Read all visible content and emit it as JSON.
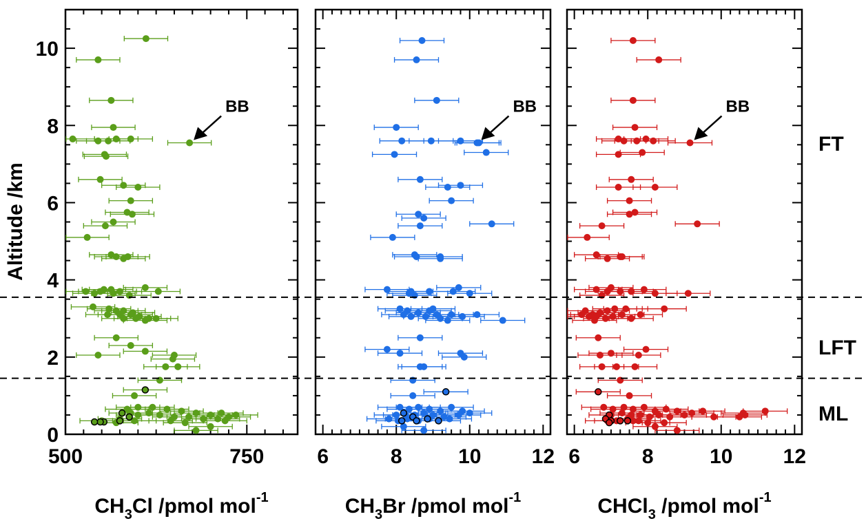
{
  "y_axis": {
    "label": "Altitude /km",
    "ticks": [
      "0",
      "2",
      "4",
      "6",
      "8",
      "10"
    ],
    "range": [
      0,
      11
    ]
  },
  "region_labels": [
    "FT",
    "LFT",
    "ML"
  ],
  "boundaries_km": [
    3.55,
    1.45
  ],
  "panels": [
    {
      "id": "ch3cl",
      "xlabel_main": "CH",
      "xlabel_sub": "3",
      "xlabel_rest": "Cl /pmol mol",
      "xlabel_sup": "-1",
      "xticks": [
        {
          "value": 500,
          "label": "500"
        },
        {
          "value": 750,
          "label": "750"
        }
      ],
      "annotation": "BB",
      "annotation_point": [
        671,
        7.55
      ]
    },
    {
      "id": "ch3br",
      "xlabel_main": "CH",
      "xlabel_sub": "3",
      "xlabel_rest": "Br /pmol mol",
      "xlabel_sup": "-1",
      "xticks": [
        {
          "value": 6,
          "label": "6"
        },
        {
          "value": 8,
          "label": "8"
        },
        {
          "value": 10,
          "label": "10"
        },
        {
          "value": 12,
          "label": "12"
        }
      ],
      "annotation": "BB",
      "annotation_point": [
        10.2,
        7.55
      ]
    },
    {
      "id": "chcl3",
      "xlabel_main": "CHCl",
      "xlabel_sub": "3",
      "xlabel_rest": " /pmol mol",
      "xlabel_sup": "-1",
      "xticks": [
        {
          "value": 6,
          "label": "6"
        },
        {
          "value": 8,
          "label": "8"
        },
        {
          "value": 10,
          "label": "10"
        },
        {
          "value": 12,
          "label": "12"
        }
      ],
      "annotation": "BB",
      "annotation_point": [
        9.15,
        7.55
      ]
    }
  ],
  "chart_data": [
    {
      "type": "scatter",
      "title": "",
      "xlabel": "CH3Cl /pmol mol-1",
      "ylabel": "Altitude /km",
      "xlim": [
        500,
        820
      ],
      "ylim": [
        0,
        11
      ],
      "color": "#5a9e1a",
      "x_error": 30,
      "points": [
        [
          611,
          10.25
        ],
        [
          545,
          9.7
        ],
        [
          563,
          8.65
        ],
        [
          566,
          7.95
        ],
        [
          510,
          7.65
        ],
        [
          545,
          7.6
        ],
        [
          559,
          7.6
        ],
        [
          570,
          7.65
        ],
        [
          590,
          7.65
        ],
        [
          671,
          7.55
        ],
        [
          554,
          7.25
        ],
        [
          556,
          7.2
        ],
        [
          548,
          6.6
        ],
        [
          580,
          6.45
        ],
        [
          600,
          6.4
        ],
        [
          590,
          6.05
        ],
        [
          585,
          5.75
        ],
        [
          592,
          5.7
        ],
        [
          566,
          5.5
        ],
        [
          555,
          5.4
        ],
        [
          530,
          5.1
        ],
        [
          563,
          4.65
        ],
        [
          570,
          4.6
        ],
        [
          580,
          4.55
        ],
        [
          586,
          4.6
        ],
        [
          528,
          3.7
        ],
        [
          548,
          3.7
        ],
        [
          553,
          3.75
        ],
        [
          563,
          3.75
        ],
        [
          610,
          3.8
        ],
        [
          628,
          3.7
        ],
        [
          540,
          3.65
        ],
        [
          566,
          3.65
        ],
        [
          575,
          3.7
        ],
        [
          588,
          3.6
        ],
        [
          538,
          3.3
        ],
        [
          560,
          3.25
        ],
        [
          570,
          3.2
        ],
        [
          580,
          3.2
        ],
        [
          593,
          3.15
        ],
        [
          558,
          3.1
        ],
        [
          575,
          3.1
        ],
        [
          590,
          3.1
        ],
        [
          602,
          3.05
        ],
        [
          615,
          3.0
        ],
        [
          580,
          3.0
        ],
        [
          597,
          3.0
        ],
        [
          610,
          2.95
        ],
        [
          625,
          3.0
        ],
        [
          570,
          2.5
        ],
        [
          590,
          2.3
        ],
        [
          545,
          2.05
        ],
        [
          610,
          2.15
        ],
        [
          650,
          2.05
        ],
        [
          648,
          1.95
        ],
        [
          638,
          1.75
        ],
        [
          655,
          1.75
        ],
        [
          630,
          1.4
        ],
        [
          610,
          1.15
        ],
        [
          595,
          1.0
        ],
        [
          600,
          0.7
        ],
        [
          585,
          0.65
        ],
        [
          620,
          0.7
        ],
        [
          640,
          0.65
        ],
        [
          660,
          0.6
        ],
        [
          680,
          0.55
        ],
        [
          700,
          0.5
        ],
        [
          715,
          0.55
        ],
        [
          725,
          0.45
        ],
        [
          735,
          0.5
        ],
        [
          590,
          0.55
        ],
        [
          600,
          0.5
        ],
        [
          615,
          0.55
        ],
        [
          630,
          0.5
        ],
        [
          650,
          0.45
        ],
        [
          670,
          0.45
        ],
        [
          690,
          0.4
        ],
        [
          710,
          0.4
        ],
        [
          720,
          0.35
        ],
        [
          575,
          0.4
        ],
        [
          595,
          0.35
        ],
        [
          645,
          0.35
        ],
        [
          665,
          0.3
        ],
        [
          700,
          0.2
        ],
        [
          680,
          0.1
        ],
        [
          570,
          0.3
        ],
        [
          550,
          0.35
        ]
      ],
      "outlined_points": [
        [
          610,
          1.15
        ],
        [
          578,
          0.55
        ],
        [
          588,
          0.45
        ],
        [
          575,
          0.35
        ],
        [
          553,
          0.32
        ],
        [
          548,
          0.32
        ],
        [
          540,
          0.32
        ]
      ]
    },
    {
      "type": "scatter",
      "title": "",
      "xlabel": "CH3Br /pmol mol-1",
      "ylabel": "Altitude /km",
      "xlim": [
        5.8,
        12.2
      ],
      "ylim": [
        0,
        11
      ],
      "color": "#1f6fe6",
      "x_error": 0.6,
      "points": [
        [
          8.7,
          10.2
        ],
        [
          8.55,
          9.7
        ],
        [
          9.1,
          8.65
        ],
        [
          8.0,
          7.95
        ],
        [
          8.15,
          7.6
        ],
        [
          8.95,
          7.6
        ],
        [
          9.75,
          7.6
        ],
        [
          10.2,
          7.55
        ],
        [
          10.25,
          7.55
        ],
        [
          10.45,
          7.3
        ],
        [
          7.95,
          7.25
        ],
        [
          8.65,
          6.6
        ],
        [
          9.4,
          6.4
        ],
        [
          9.75,
          6.45
        ],
        [
          9.5,
          6.05
        ],
        [
          8.6,
          5.7
        ],
        [
          8.75,
          5.6
        ],
        [
          10.6,
          5.45
        ],
        [
          8.65,
          5.4
        ],
        [
          7.9,
          5.1
        ],
        [
          8.5,
          4.65
        ],
        [
          8.55,
          4.6
        ],
        [
          9.2,
          4.6
        ],
        [
          9.2,
          4.55
        ],
        [
          7.75,
          3.75
        ],
        [
          8.4,
          3.7
        ],
        [
          8.35,
          3.65
        ],
        [
          8.9,
          3.7
        ],
        [
          9.55,
          3.7
        ],
        [
          9.7,
          3.8
        ],
        [
          10.0,
          3.65
        ],
        [
          8.5,
          3.6
        ],
        [
          8.1,
          3.25
        ],
        [
          8.3,
          3.2
        ],
        [
          8.6,
          3.15
        ],
        [
          8.9,
          3.2
        ],
        [
          9.1,
          3.1
        ],
        [
          8.4,
          3.05
        ],
        [
          8.8,
          3.05
        ],
        [
          9.2,
          3.0
        ],
        [
          9.5,
          3.1
        ],
        [
          9.8,
          3.05
        ],
        [
          10.2,
          3.1
        ],
        [
          10.9,
          2.95
        ],
        [
          9.4,
          2.95
        ],
        [
          8.2,
          3.1
        ],
        [
          9.0,
          3.25
        ],
        [
          8.65,
          2.5
        ],
        [
          7.75,
          2.2
        ],
        [
          8.1,
          2.1
        ],
        [
          9.75,
          2.1
        ],
        [
          9.85,
          2.0
        ],
        [
          8.75,
          1.75
        ],
        [
          8.65,
          1.75
        ],
        [
          8.45,
          1.4
        ],
        [
          9.35,
          1.1
        ],
        [
          8.45,
          1.0
        ],
        [
          8.1,
          0.7
        ],
        [
          8.35,
          0.65
        ],
        [
          8.6,
          0.7
        ],
        [
          8.9,
          0.65
        ],
        [
          9.2,
          0.6
        ],
        [
          9.5,
          0.7
        ],
        [
          9.8,
          0.6
        ],
        [
          10.0,
          0.55
        ],
        [
          8.0,
          0.5
        ],
        [
          8.25,
          0.5
        ],
        [
          8.5,
          0.5
        ],
        [
          8.75,
          0.55
        ],
        [
          9.0,
          0.5
        ],
        [
          9.3,
          0.45
        ],
        [
          9.7,
          0.5
        ],
        [
          7.8,
          0.4
        ],
        [
          8.05,
          0.35
        ],
        [
          8.3,
          0.4
        ],
        [
          8.6,
          0.35
        ],
        [
          8.9,
          0.4
        ],
        [
          9.15,
          0.35
        ],
        [
          9.45,
          0.4
        ],
        [
          8.2,
          0.2
        ],
        [
          8.75,
          0.1
        ]
      ],
      "outlined_points": [
        [
          9.35,
          1.1
        ],
        [
          8.2,
          0.55
        ],
        [
          8.45,
          0.45
        ],
        [
          8.15,
          0.35
        ],
        [
          8.85,
          0.4
        ],
        [
          9.15,
          0.35
        ],
        [
          8.55,
          0.35
        ]
      ]
    },
    {
      "type": "scatter",
      "title": "",
      "xlabel": "CHCl3 /pmol mol-1",
      "ylabel": "Altitude /km",
      "xlim": [
        5.8,
        12.2
      ],
      "ylim": [
        0,
        11
      ],
      "color": "#d21a1a",
      "x_error": 0.6,
      "points": [
        [
          7.6,
          10.2
        ],
        [
          8.3,
          9.7
        ],
        [
          7.6,
          8.65
        ],
        [
          7.65,
          7.95
        ],
        [
          7.2,
          7.65
        ],
        [
          7.35,
          7.6
        ],
        [
          7.7,
          7.6
        ],
        [
          7.95,
          7.65
        ],
        [
          8.15,
          7.6
        ],
        [
          9.15,
          7.55
        ],
        [
          7.85,
          7.3
        ],
        [
          7.2,
          7.25
        ],
        [
          7.55,
          6.6
        ],
        [
          7.2,
          6.4
        ],
        [
          8.2,
          6.4
        ],
        [
          7.5,
          6.05
        ],
        [
          7.5,
          5.7
        ],
        [
          7.65,
          5.75
        ],
        [
          9.35,
          5.45
        ],
        [
          6.75,
          5.4
        ],
        [
          6.35,
          5.1
        ],
        [
          6.6,
          4.65
        ],
        [
          6.9,
          4.55
        ],
        [
          7.25,
          4.6
        ],
        [
          7.3,
          4.6
        ],
        [
          6.6,
          3.75
        ],
        [
          6.9,
          3.7
        ],
        [
          7.0,
          3.8
        ],
        [
          7.25,
          3.7
        ],
        [
          7.55,
          3.7
        ],
        [
          7.9,
          3.75
        ],
        [
          8.2,
          3.65
        ],
        [
          9.1,
          3.65
        ],
        [
          6.75,
          3.6
        ],
        [
          6.3,
          3.2
        ],
        [
          6.5,
          3.1
        ],
        [
          6.7,
          3.15
        ],
        [
          6.9,
          3.2
        ],
        [
          7.1,
          3.25
        ],
        [
          6.4,
          3.05
        ],
        [
          6.6,
          3.05
        ],
        [
          6.85,
          3.0
        ],
        [
          7.05,
          3.05
        ],
        [
          7.3,
          3.1
        ],
        [
          7.55,
          3.0
        ],
        [
          7.8,
          3.1
        ],
        [
          8.45,
          3.25
        ],
        [
          6.2,
          3.1
        ],
        [
          7.4,
          3.25
        ],
        [
          6.55,
          2.95
        ],
        [
          6.65,
          2.5
        ],
        [
          7.95,
          2.2
        ],
        [
          6.7,
          2.05
        ],
        [
          7.0,
          2.1
        ],
        [
          7.75,
          2.05
        ],
        [
          6.75,
          1.75
        ],
        [
          7.15,
          1.75
        ],
        [
          7.65,
          1.75
        ],
        [
          7.25,
          1.4
        ],
        [
          6.65,
          1.1
        ],
        [
          7.5,
          1.0
        ],
        [
          6.8,
          0.7
        ],
        [
          7.05,
          0.65
        ],
        [
          7.35,
          0.7
        ],
        [
          7.6,
          0.65
        ],
        [
          7.9,
          0.7
        ],
        [
          8.2,
          0.6
        ],
        [
          8.5,
          0.65
        ],
        [
          8.8,
          0.6
        ],
        [
          9.2,
          0.55
        ],
        [
          9.5,
          0.6
        ],
        [
          10.6,
          0.55
        ],
        [
          10.65,
          0.5
        ],
        [
          11.2,
          0.6
        ],
        [
          7.0,
          0.5
        ],
        [
          7.3,
          0.55
        ],
        [
          7.55,
          0.5
        ],
        [
          7.8,
          0.5
        ],
        [
          8.05,
          0.45
        ],
        [
          8.3,
          0.5
        ],
        [
          8.6,
          0.45
        ],
        [
          9.0,
          0.5
        ],
        [
          9.8,
          0.45
        ],
        [
          10.5,
          0.45
        ],
        [
          6.9,
          0.35
        ],
        [
          7.15,
          0.35
        ],
        [
          7.45,
          0.4
        ],
        [
          7.75,
          0.35
        ],
        [
          8.0,
          0.3
        ],
        [
          8.45,
          0.3
        ],
        [
          8.2,
          0.2
        ],
        [
          8.8,
          0.1
        ],
        [
          7.6,
          0.35
        ]
      ],
      "outlined_points": [
        [
          6.65,
          1.1
        ],
        [
          6.95,
          0.5
        ],
        [
          6.85,
          0.4
        ],
        [
          7.0,
          0.35
        ],
        [
          7.25,
          0.35
        ],
        [
          7.45,
          0.35
        ],
        [
          6.95,
          0.3
        ]
      ]
    }
  ]
}
